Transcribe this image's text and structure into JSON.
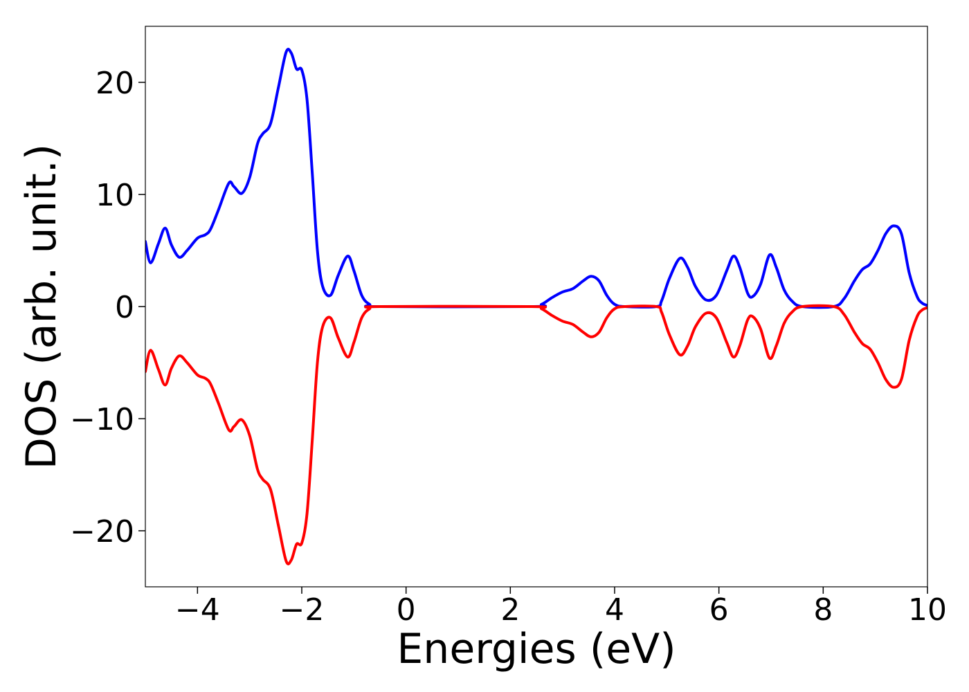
{
  "chart_data": {
    "type": "line",
    "title": "",
    "xlabel": "Energies (eV)",
    "ylabel": "DOS (arb. unit.)",
    "xlim": [
      -5,
      10
    ],
    "ylim": [
      -25,
      25
    ],
    "grid": false,
    "x_ticks": [
      {
        "value": -4,
        "label": "−4"
      },
      {
        "value": -2,
        "label": "−2"
      },
      {
        "value": 0,
        "label": "0"
      },
      {
        "value": 2,
        "label": "2"
      },
      {
        "value": 4,
        "label": "4"
      },
      {
        "value": 6,
        "label": "6"
      },
      {
        "value": 8,
        "label": "8"
      },
      {
        "value": 10,
        "label": "10"
      }
    ],
    "y_ticks": [
      {
        "value": 20,
        "label": "20"
      },
      {
        "value": 10,
        "label": "10"
      },
      {
        "value": 0,
        "label": "0"
      },
      {
        "value": -10,
        "label": "−10"
      },
      {
        "value": -20,
        "label": "−20"
      }
    ],
    "series": [
      {
        "color": "#0000ff",
        "points": [
          [
            -5.0,
            5.8
          ],
          [
            -4.9,
            3.9
          ],
          [
            -4.75,
            5.6
          ],
          [
            -4.62,
            7.0
          ],
          [
            -4.5,
            5.5
          ],
          [
            -4.35,
            4.4
          ],
          [
            -4.2,
            5.0
          ],
          [
            -4.0,
            6.1
          ],
          [
            -3.85,
            6.4
          ],
          [
            -3.75,
            6.9
          ],
          [
            -3.6,
            8.6
          ],
          [
            -3.4,
            11.0
          ],
          [
            -3.3,
            10.7
          ],
          [
            -3.15,
            10.1
          ],
          [
            -3.0,
            11.5
          ],
          [
            -2.85,
            14.5
          ],
          [
            -2.75,
            15.4
          ],
          [
            -2.6,
            16.3
          ],
          [
            -2.45,
            19.5
          ],
          [
            -2.3,
            22.7
          ],
          [
            -2.2,
            22.6
          ],
          [
            -2.1,
            21.2
          ],
          [
            -2.0,
            21.1
          ],
          [
            -1.9,
            18.5
          ],
          [
            -1.8,
            12.0
          ],
          [
            -1.7,
            5.0
          ],
          [
            -1.6,
            1.8
          ],
          [
            -1.45,
            1.0
          ],
          [
            -1.3,
            2.8
          ],
          [
            -1.12,
            4.5
          ],
          [
            -1.0,
            3.2
          ],
          [
            -0.85,
            1.0
          ],
          [
            -0.7,
            0.2
          ],
          [
            -0.5,
            0.0
          ],
          [
            2.4,
            0.0
          ],
          [
            2.6,
            0.2
          ],
          [
            2.8,
            0.8
          ],
          [
            3.0,
            1.3
          ],
          [
            3.2,
            1.6
          ],
          [
            3.4,
            2.3
          ],
          [
            3.55,
            2.7
          ],
          [
            3.7,
            2.3
          ],
          [
            3.85,
            1.0
          ],
          [
            4.0,
            0.2
          ],
          [
            4.2,
            0.0
          ],
          [
            4.8,
            0.0
          ],
          [
            4.9,
            0.5
          ],
          [
            5.05,
            2.5
          ],
          [
            5.25,
            4.3
          ],
          [
            5.4,
            3.5
          ],
          [
            5.55,
            1.8
          ],
          [
            5.75,
            0.6
          ],
          [
            5.95,
            1.0
          ],
          [
            6.15,
            3.2
          ],
          [
            6.28,
            4.5
          ],
          [
            6.4,
            3.5
          ],
          [
            6.55,
            1.2
          ],
          [
            6.65,
            0.9
          ],
          [
            6.8,
            2.0
          ],
          [
            6.97,
            4.6
          ],
          [
            7.1,
            3.5
          ],
          [
            7.25,
            1.5
          ],
          [
            7.4,
            0.5
          ],
          [
            7.6,
            0.0
          ],
          [
            8.2,
            0.0
          ],
          [
            8.4,
            0.7
          ],
          [
            8.6,
            2.3
          ],
          [
            8.75,
            3.3
          ],
          [
            8.9,
            3.8
          ],
          [
            9.05,
            5.0
          ],
          [
            9.2,
            6.5
          ],
          [
            9.35,
            7.2
          ],
          [
            9.5,
            6.5
          ],
          [
            9.65,
            3.0
          ],
          [
            9.8,
            0.9
          ],
          [
            9.9,
            0.3
          ],
          [
            10.0,
            0.1
          ]
        ]
      },
      {
        "color": "#ff0000",
        "points": [
          [
            -5.0,
            -5.8
          ],
          [
            -4.9,
            -3.9
          ],
          [
            -4.75,
            -5.6
          ],
          [
            -4.62,
            -7.0
          ],
          [
            -4.5,
            -5.5
          ],
          [
            -4.35,
            -4.4
          ],
          [
            -4.2,
            -5.0
          ],
          [
            -4.0,
            -6.1
          ],
          [
            -3.85,
            -6.4
          ],
          [
            -3.75,
            -6.9
          ],
          [
            -3.6,
            -8.6
          ],
          [
            -3.4,
            -11.0
          ],
          [
            -3.3,
            -10.7
          ],
          [
            -3.15,
            -10.1
          ],
          [
            -3.0,
            -11.5
          ],
          [
            -2.85,
            -14.5
          ],
          [
            -2.75,
            -15.4
          ],
          [
            -2.6,
            -16.3
          ],
          [
            -2.45,
            -19.5
          ],
          [
            -2.3,
            -22.7
          ],
          [
            -2.2,
            -22.6
          ],
          [
            -2.1,
            -21.2
          ],
          [
            -2.0,
            -21.1
          ],
          [
            -1.9,
            -18.5
          ],
          [
            -1.8,
            -12.0
          ],
          [
            -1.7,
            -5.0
          ],
          [
            -1.6,
            -1.8
          ],
          [
            -1.45,
            -1.0
          ],
          [
            -1.3,
            -2.8
          ],
          [
            -1.12,
            -4.5
          ],
          [
            -1.0,
            -3.2
          ],
          [
            -0.85,
            -1.0
          ],
          [
            -0.7,
            -0.2
          ],
          [
            -0.5,
            0.0
          ],
          [
            2.4,
            0.0
          ],
          [
            2.6,
            -0.2
          ],
          [
            2.8,
            -0.8
          ],
          [
            3.0,
            -1.3
          ],
          [
            3.2,
            -1.6
          ],
          [
            3.4,
            -2.3
          ],
          [
            3.55,
            -2.7
          ],
          [
            3.7,
            -2.3
          ],
          [
            3.85,
            -1.0
          ],
          [
            4.0,
            -0.2
          ],
          [
            4.2,
            0.0
          ],
          [
            4.8,
            0.0
          ],
          [
            4.9,
            -0.5
          ],
          [
            5.05,
            -2.5
          ],
          [
            5.25,
            -4.3
          ],
          [
            5.4,
            -3.5
          ],
          [
            5.55,
            -1.8
          ],
          [
            5.75,
            -0.6
          ],
          [
            5.95,
            -1.0
          ],
          [
            6.15,
            -3.2
          ],
          [
            6.28,
            -4.5
          ],
          [
            6.4,
            -3.5
          ],
          [
            6.55,
            -1.2
          ],
          [
            6.65,
            -0.9
          ],
          [
            6.8,
            -2.0
          ],
          [
            6.97,
            -4.6
          ],
          [
            7.1,
            -3.5
          ],
          [
            7.25,
            -1.5
          ],
          [
            7.4,
            -0.5
          ],
          [
            7.6,
            0.0
          ],
          [
            8.2,
            0.0
          ],
          [
            8.4,
            -0.7
          ],
          [
            8.6,
            -2.3
          ],
          [
            8.75,
            -3.3
          ],
          [
            8.9,
            -3.8
          ],
          [
            9.05,
            -5.0
          ],
          [
            9.2,
            -6.5
          ],
          [
            9.35,
            -7.2
          ],
          [
            9.5,
            -6.5
          ],
          [
            9.65,
            -3.0
          ],
          [
            9.8,
            -0.9
          ],
          [
            9.9,
            -0.3
          ],
          [
            10.0,
            -0.1
          ]
        ]
      }
    ]
  }
}
